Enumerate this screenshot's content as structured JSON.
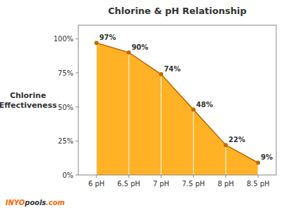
{
  "chart_data": {
    "type": "area",
    "title": "Chlorine & pH Relationship",
    "ylabel": "Chlorine\nEffectiveness",
    "x": [
      6.0,
      6.5,
      7.0,
      7.5,
      8.0,
      8.5
    ],
    "values": [
      97,
      90,
      74,
      48,
      22,
      9
    ],
    "value_labels": [
      "97%",
      "90%",
      "74%",
      "48%",
      "22%",
      "9%"
    ],
    "color": "#FFA500",
    "marker": "circle",
    "data_labels": true,
    "grid": false,
    "xlim": [
      5.72,
      8.78
    ],
    "xticks": [
      {
        "value": 6.0,
        "label": "6 pH"
      },
      {
        "value": 6.5,
        "label": "6.5 pH"
      },
      {
        "value": 7.0,
        "label": "7 pH"
      },
      {
        "value": 7.5,
        "label": "7.5 pH"
      },
      {
        "value": 8.0,
        "label": "8 pH"
      },
      {
        "value": 8.5,
        "label": "8.5 pH"
      }
    ],
    "ylim": [
      0,
      110
    ],
    "yticks": [
      {
        "value": 0,
        "label": "0%"
      },
      {
        "value": 25,
        "label": "25%"
      },
      {
        "value": 50,
        "label": "50%"
      },
      {
        "value": 75,
        "label": "75%"
      },
      {
        "value": 100,
        "label": "100%"
      }
    ],
    "annotations": [
      {
        "text": "INYO",
        "color": "#FF6600"
      },
      {
        "text": "pools",
        "color": "#333333"
      },
      {
        "text": ".com",
        "color": "#FF6600"
      }
    ]
  }
}
